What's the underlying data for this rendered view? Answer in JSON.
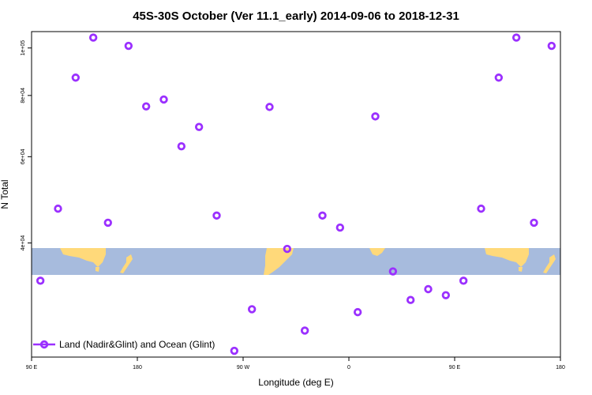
{
  "chart_data": {
    "type": "scatter",
    "title": "45S-30S October (Ver 11.1_early)   2014-09-06 to 2018-12-31",
    "xlabel": "Longitude (deg E)",
    "ylabel": "N Total",
    "x_tick_labels": [
      "90 E",
      "180",
      "90 W",
      "0",
      "90 E",
      "180"
    ],
    "x_ticks": [
      90,
      180,
      270,
      360,
      450,
      540
    ],
    "xlim": [
      90,
      540
    ],
    "y_scale": "log",
    "y_tick_labels": [
      "4e+04",
      "6e+04",
      "8e+04",
      "1e+05"
    ],
    "y_ticks": [
      40000,
      60000,
      80000,
      100000
    ],
    "ylim": [
      23400,
      108000
    ],
    "marker_color": "#9B30FF",
    "ocean_color": "#A7BBDD",
    "land_color": "#FFD97A",
    "legend_position": "bottom-left",
    "series": [
      {
        "name": "Land (Nadir&Glint) and Ocean (Glint)",
        "x": [
          97.5,
          112.5,
          127.5,
          142.5,
          155,
          172.5,
          187.5,
          202.5,
          217.5,
          232.5,
          247.5,
          262.5,
          277.5,
          292.5,
          307.5,
          322.5,
          337.5,
          352.5,
          367.5,
          382.5,
          397.5,
          412.5,
          427.5,
          442.5,
          457.5,
          472.5,
          487.5,
          502.5,
          517.5,
          532.5
        ],
        "y": [
          33500,
          47000,
          87000,
          105000,
          44000,
          101000,
          76000,
          78500,
          63000,
          69000,
          45500,
          24100,
          29300,
          75800,
          38900,
          26500,
          45500,
          43000,
          28900,
          72500,
          35000,
          30600,
          32200,
          31300,
          33500,
          47000,
          87000,
          105000,
          44000,
          101000
        ]
      }
    ]
  }
}
